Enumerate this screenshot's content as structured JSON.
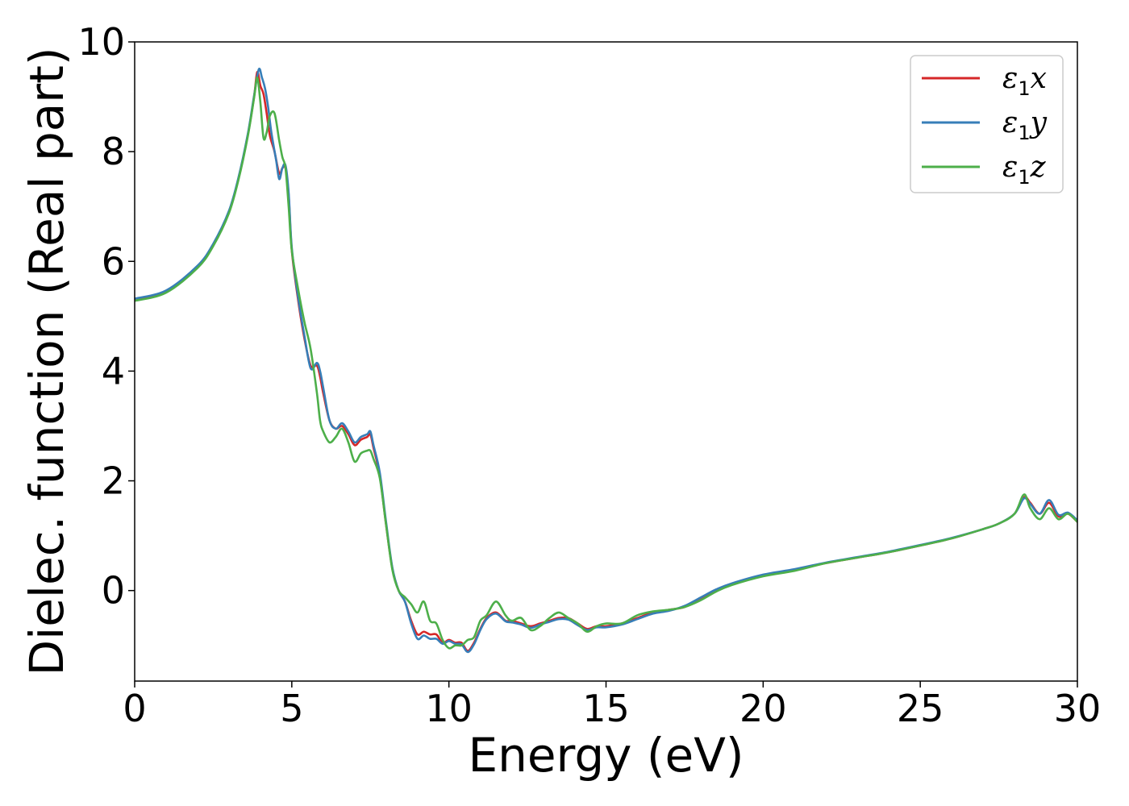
{
  "chart_data": {
    "type": "line",
    "title": "",
    "xlabel": "Energy (eV)",
    "ylabel": "Dielec. function (Real part)",
    "xlim": [
      0,
      30
    ],
    "ylim": [
      -1.65,
      10
    ],
    "xticks": [
      0,
      5,
      10,
      15,
      20,
      25,
      30
    ],
    "yticks": [
      0,
      2,
      4,
      6,
      8,
      10
    ],
    "grid": false,
    "legend_position": "top-right",
    "series": [
      {
        "name": "ε1x",
        "label_base": "ε",
        "label_sub": "1",
        "label_var": "x",
        "color": "#d62728",
        "x": [
          0,
          1,
          2,
          2.5,
          3,
          3.3,
          3.6,
          3.8,
          3.9,
          4.0,
          4.1,
          4.2,
          4.3,
          4.45,
          4.6,
          4.7,
          4.8,
          4.9,
          5.0,
          5.2,
          5.4,
          5.6,
          5.8,
          5.9,
          6.0,
          6.2,
          6.4,
          6.6,
          6.8,
          7.0,
          7.2,
          7.4,
          7.5,
          7.6,
          7.8,
          8.0,
          8.2,
          8.4,
          8.6,
          8.8,
          9.0,
          9.2,
          9.4,
          9.6,
          9.8,
          10.0,
          10.2,
          10.4,
          10.6,
          10.8,
          11.0,
          11.2,
          11.5,
          11.8,
          12.0,
          12.3,
          12.6,
          12.9,
          13.2,
          13.5,
          13.8,
          14.1,
          14.4,
          14.7,
          15.0,
          15.5,
          16.0,
          16.5,
          17.0,
          17.5,
          18.0,
          18.5,
          19.0,
          20.0,
          21.0,
          22.0,
          23.0,
          24.0,
          25.0,
          26.0,
          27.0,
          27.5,
          28.0,
          28.3,
          28.5,
          28.8,
          29.1,
          29.4,
          29.7,
          30.0
        ],
        "y": [
          5.3,
          5.45,
          5.9,
          6.3,
          6.9,
          7.5,
          8.3,
          9.0,
          9.45,
          9.2,
          9.05,
          8.7,
          8.3,
          8.0,
          7.6,
          7.7,
          7.7,
          7.2,
          6.2,
          5.3,
          4.6,
          4.1,
          4.1,
          3.9,
          3.6,
          3.1,
          2.95,
          3.0,
          2.85,
          2.65,
          2.75,
          2.8,
          2.85,
          2.6,
          2.1,
          1.2,
          0.4,
          0.0,
          -0.2,
          -0.55,
          -0.8,
          -0.75,
          -0.8,
          -0.8,
          -0.95,
          -0.9,
          -0.95,
          -0.95,
          -1.1,
          -0.95,
          -0.7,
          -0.5,
          -0.4,
          -0.55,
          -0.55,
          -0.6,
          -0.65,
          -0.6,
          -0.55,
          -0.5,
          -0.5,
          -0.6,
          -0.7,
          -0.65,
          -0.65,
          -0.6,
          -0.5,
          -0.4,
          -0.35,
          -0.3,
          -0.15,
          0.0,
          0.12,
          0.28,
          0.38,
          0.5,
          0.6,
          0.7,
          0.82,
          0.95,
          1.12,
          1.22,
          1.4,
          1.7,
          1.6,
          1.4,
          1.6,
          1.35,
          1.4,
          1.25
        ]
      },
      {
        "name": "ε1y",
        "label_base": "ε",
        "label_sub": "1",
        "label_var": "y",
        "color": "#377eb8",
        "x": [
          0,
          1,
          2,
          2.5,
          3,
          3.3,
          3.6,
          3.8,
          3.95,
          4.05,
          4.15,
          4.25,
          4.35,
          4.5,
          4.6,
          4.7,
          4.8,
          4.9,
          5.0,
          5.2,
          5.4,
          5.6,
          5.8,
          5.9,
          6.0,
          6.2,
          6.4,
          6.6,
          6.8,
          7.0,
          7.2,
          7.4,
          7.5,
          7.6,
          7.8,
          8.0,
          8.2,
          8.4,
          8.6,
          8.8,
          9.0,
          9.2,
          9.4,
          9.6,
          9.8,
          10.0,
          10.2,
          10.4,
          10.6,
          10.8,
          11.0,
          11.2,
          11.5,
          11.8,
          12.0,
          12.3,
          12.6,
          12.9,
          13.2,
          13.5,
          13.8,
          14.1,
          14.4,
          14.7,
          15.0,
          15.5,
          16.0,
          16.5,
          17.0,
          17.5,
          18.0,
          18.5,
          19.0,
          20.0,
          21.0,
          22.0,
          23.0,
          24.0,
          25.0,
          26.0,
          27.0,
          27.5,
          28.0,
          28.3,
          28.5,
          28.8,
          29.1,
          29.4,
          29.7,
          30.0
        ],
        "y": [
          5.32,
          5.47,
          5.92,
          6.32,
          6.92,
          7.52,
          8.32,
          9.02,
          9.5,
          9.35,
          9.15,
          8.8,
          8.35,
          7.85,
          7.5,
          7.7,
          7.75,
          7.25,
          6.25,
          5.35,
          4.65,
          4.05,
          4.15,
          4.0,
          3.7,
          3.1,
          2.95,
          3.05,
          2.9,
          2.7,
          2.8,
          2.85,
          2.9,
          2.65,
          2.15,
          1.25,
          0.42,
          0.0,
          -0.2,
          -0.6,
          -0.88,
          -0.82,
          -0.88,
          -0.88,
          -0.97,
          -0.92,
          -0.97,
          -0.98,
          -1.12,
          -0.98,
          -0.72,
          -0.52,
          -0.42,
          -0.56,
          -0.58,
          -0.62,
          -0.68,
          -0.62,
          -0.57,
          -0.52,
          -0.53,
          -0.63,
          -0.72,
          -0.67,
          -0.67,
          -0.62,
          -0.52,
          -0.42,
          -0.37,
          -0.28,
          -0.13,
          0.02,
          0.13,
          0.29,
          0.39,
          0.51,
          0.61,
          0.71,
          0.83,
          0.96,
          1.12,
          1.22,
          1.4,
          1.68,
          1.58,
          1.4,
          1.65,
          1.38,
          1.42,
          1.28
        ]
      },
      {
        "name": "ε1z",
        "label_base": "ε",
        "label_sub": "1",
        "label_var": "z",
        "color": "#4daf4a",
        "x": [
          0,
          1,
          2,
          2.5,
          3,
          3.3,
          3.6,
          3.8,
          3.9,
          4.0,
          4.1,
          4.2,
          4.3,
          4.45,
          4.6,
          4.7,
          4.8,
          4.9,
          5.0,
          5.2,
          5.4,
          5.6,
          5.8,
          5.9,
          6.0,
          6.2,
          6.4,
          6.6,
          6.8,
          7.0,
          7.2,
          7.4,
          7.5,
          7.6,
          7.8,
          8.0,
          8.2,
          8.4,
          8.6,
          8.8,
          9.0,
          9.2,
          9.4,
          9.6,
          9.8,
          10.0,
          10.2,
          10.4,
          10.6,
          10.8,
          11.0,
          11.2,
          11.5,
          11.8,
          12.0,
          12.3,
          12.6,
          12.9,
          13.2,
          13.5,
          13.8,
          14.1,
          14.4,
          14.7,
          15.0,
          15.5,
          16.0,
          16.5,
          17.0,
          17.5,
          18.0,
          18.5,
          19.0,
          20.0,
          21.0,
          22.0,
          23.0,
          24.0,
          25.0,
          26.0,
          27.0,
          27.5,
          28.0,
          28.3,
          28.5,
          28.8,
          29.1,
          29.4,
          29.7,
          30.0
        ],
        "y": [
          5.28,
          5.43,
          5.88,
          6.28,
          6.88,
          7.48,
          8.28,
          8.98,
          9.35,
          8.9,
          8.25,
          8.35,
          8.65,
          8.7,
          8.2,
          7.9,
          7.7,
          7.0,
          6.2,
          5.5,
          4.9,
          4.4,
          3.6,
          3.1,
          2.9,
          2.7,
          2.8,
          2.95,
          2.7,
          2.35,
          2.5,
          2.55,
          2.55,
          2.4,
          2.05,
          1.2,
          0.38,
          0.0,
          -0.12,
          -0.25,
          -0.4,
          -0.2,
          -0.55,
          -0.6,
          -0.9,
          -1.05,
          -1.0,
          -1.0,
          -0.9,
          -0.85,
          -0.55,
          -0.45,
          -0.2,
          -0.45,
          -0.55,
          -0.5,
          -0.72,
          -0.65,
          -0.5,
          -0.4,
          -0.5,
          -0.6,
          -0.75,
          -0.65,
          -0.6,
          -0.6,
          -0.45,
          -0.38,
          -0.35,
          -0.3,
          -0.18,
          -0.02,
          0.1,
          0.26,
          0.36,
          0.5,
          0.6,
          0.7,
          0.82,
          0.95,
          1.12,
          1.22,
          1.4,
          1.75,
          1.5,
          1.3,
          1.5,
          1.3,
          1.4,
          1.25
        ]
      }
    ]
  }
}
